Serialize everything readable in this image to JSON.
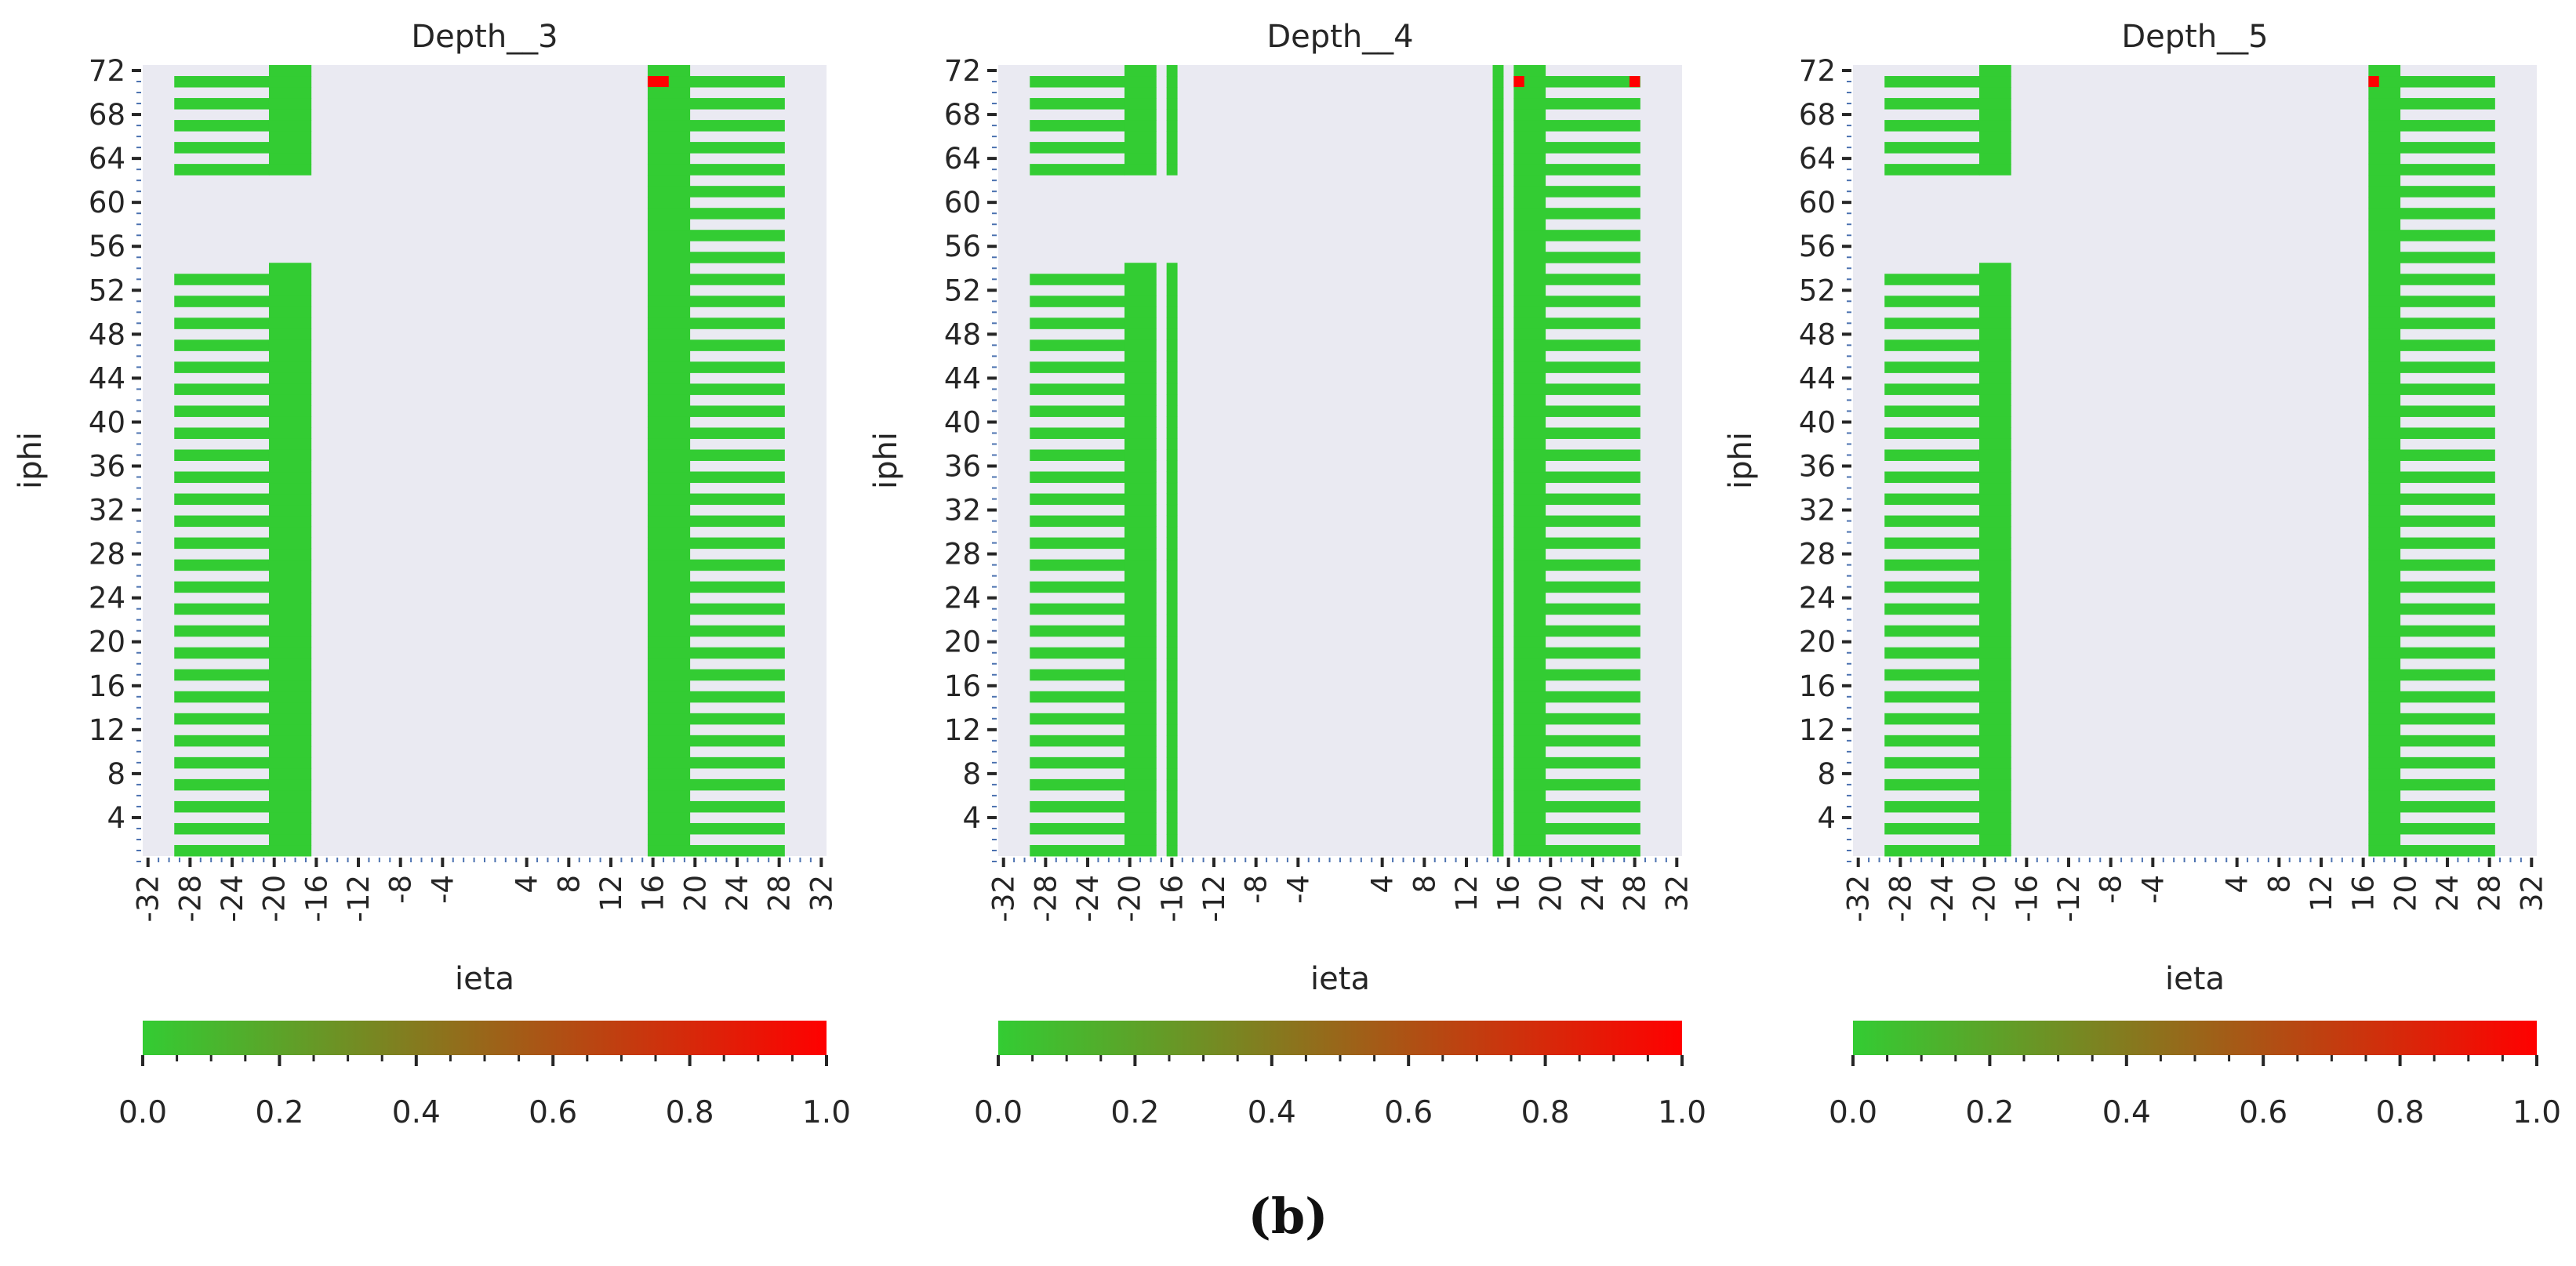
{
  "figure": {
    "panel_label": "(b)"
  },
  "chart_data": [
    {
      "type": "heatmap",
      "title": "Depth__3",
      "xlabel": "ieta",
      "ylabel": "iphi",
      "x_tick_labels": [
        "-32",
        "-28",
        "-24",
        "-20",
        "-16",
        "-12",
        "-8",
        "-4",
        "4",
        "8",
        "12",
        "16",
        "20",
        "24",
        "28",
        "32"
      ],
      "y_tick_labels": [
        "4",
        "8",
        "12",
        "16",
        "20",
        "24",
        "28",
        "32",
        "36",
        "40",
        "44",
        "48",
        "52",
        "56",
        "60",
        "64",
        "68",
        "72"
      ],
      "xlim": [
        -32,
        32
      ],
      "ylim": [
        0,
        72
      ],
      "colorbar": {
        "min": 0.0,
        "max": 1.0,
        "low_color": "#33cc33",
        "high_color": "#ff0000",
        "tick_labels": [
          "0.0",
          "0.2",
          "0.4",
          "0.6",
          "0.8",
          "1.0"
        ]
      },
      "background_color": "#eaeaf2",
      "blocks": [
        {
          "ieta": [
            -29,
            -21
          ],
          "iphi_rows": "odd",
          "iphi_range": [
            1,
            53
          ],
          "value": 0.0
        },
        {
          "ieta": [
            -29,
            -21
          ],
          "iphi_rows": "odd",
          "iphi_range": [
            63,
            71
          ],
          "value": 0.0
        },
        {
          "ieta": [
            -20,
            -17
          ],
          "iphi_rows": "all",
          "iphi_range": [
            1,
            54
          ],
          "value": 0.0
        },
        {
          "ieta": [
            -20,
            -17
          ],
          "iphi_rows": "all",
          "iphi_range": [
            63,
            72
          ],
          "value": 0.0
        },
        {
          "ieta": [
            16,
            19
          ],
          "iphi_rows": "all",
          "iphi_range": [
            1,
            72
          ],
          "value": 0.0
        },
        {
          "ieta": [
            20,
            28
          ],
          "iphi_rows": "odd",
          "iphi_range": [
            1,
            71
          ],
          "value": 0.0
        }
      ],
      "hot_cells": [
        {
          "ieta": [
            16,
            17
          ],
          "iphi": 71,
          "value": 1.0
        }
      ]
    },
    {
      "type": "heatmap",
      "title": "Depth__4",
      "xlabel": "ieta",
      "ylabel": "iphi",
      "x_tick_labels": [
        "-32",
        "-28",
        "-24",
        "-20",
        "-16",
        "-12",
        "-8",
        "-4",
        "4",
        "8",
        "12",
        "16",
        "20",
        "24",
        "28",
        "32"
      ],
      "y_tick_labels": [
        "4",
        "8",
        "12",
        "16",
        "20",
        "24",
        "28",
        "32",
        "36",
        "40",
        "44",
        "48",
        "52",
        "56",
        "60",
        "64",
        "68",
        "72"
      ],
      "xlim": [
        -32,
        32
      ],
      "ylim": [
        0,
        72
      ],
      "colorbar": {
        "min": 0.0,
        "max": 1.0,
        "low_color": "#33cc33",
        "high_color": "#ff0000",
        "tick_labels": [
          "0.0",
          "0.2",
          "0.4",
          "0.6",
          "0.8",
          "1.0"
        ]
      },
      "background_color": "#eaeaf2",
      "blocks": [
        {
          "ieta": [
            -29,
            -21
          ],
          "iphi_rows": "odd",
          "iphi_range": [
            1,
            53
          ],
          "value": 0.0
        },
        {
          "ieta": [
            -29,
            -21
          ],
          "iphi_rows": "odd",
          "iphi_range": [
            63,
            71
          ],
          "value": 0.0
        },
        {
          "ieta": [
            -20,
            -18
          ],
          "iphi_rows": "all",
          "iphi_range": [
            1,
            54
          ],
          "value": 0.0
        },
        {
          "ieta": [
            -20,
            -18
          ],
          "iphi_rows": "all",
          "iphi_range": [
            63,
            72
          ],
          "value": 0.0
        },
        {
          "ieta": [
            -16,
            -16
          ],
          "iphi_rows": "all",
          "iphi_range": [
            1,
            54
          ],
          "value": 0.0
        },
        {
          "ieta": [
            -16,
            -16
          ],
          "iphi_rows": "all",
          "iphi_range": [
            63,
            72
          ],
          "value": 0.0
        },
        {
          "ieta": [
            15,
            15
          ],
          "iphi_rows": "all",
          "iphi_range": [
            1,
            72
          ],
          "value": 0.0
        },
        {
          "ieta": [
            17,
            19
          ],
          "iphi_rows": "all",
          "iphi_range": [
            1,
            72
          ],
          "value": 0.0
        },
        {
          "ieta": [
            20,
            28
          ],
          "iphi_rows": "odd",
          "iphi_range": [
            1,
            71
          ],
          "value": 0.0
        }
      ],
      "hot_cells": [
        {
          "ieta": [
            17,
            17
          ],
          "iphi": 71,
          "value": 1.0
        },
        {
          "ieta": [
            28,
            28
          ],
          "iphi": 71,
          "value": 1.0
        }
      ]
    },
    {
      "type": "heatmap",
      "title": "Depth__5",
      "xlabel": "ieta",
      "ylabel": "iphi",
      "x_tick_labels": [
        "-32",
        "-28",
        "-24",
        "-20",
        "-16",
        "-12",
        "-8",
        "-4",
        "4",
        "8",
        "12",
        "16",
        "20",
        "24",
        "28",
        "32"
      ],
      "y_tick_labels": [
        "4",
        "8",
        "12",
        "16",
        "20",
        "24",
        "28",
        "32",
        "36",
        "40",
        "44",
        "48",
        "52",
        "56",
        "60",
        "64",
        "68",
        "72"
      ],
      "xlim": [
        -32,
        32
      ],
      "ylim": [
        0,
        72
      ],
      "colorbar": {
        "min": 0.0,
        "max": 1.0,
        "low_color": "#33cc33",
        "high_color": "#ff0000",
        "tick_labels": [
          "0.0",
          "0.2",
          "0.4",
          "0.6",
          "0.8",
          "1.0"
        ]
      },
      "background_color": "#eaeaf2",
      "blocks": [
        {
          "ieta": [
            -29,
            -21
          ],
          "iphi_rows": "odd",
          "iphi_range": [
            1,
            53
          ],
          "value": 0.0
        },
        {
          "ieta": [
            -29,
            -21
          ],
          "iphi_rows": "odd",
          "iphi_range": [
            63,
            71
          ],
          "value": 0.0
        },
        {
          "ieta": [
            -20,
            -18
          ],
          "iphi_rows": "all",
          "iphi_range": [
            1,
            54
          ],
          "value": 0.0
        },
        {
          "ieta": [
            -20,
            -18
          ],
          "iphi_rows": "all",
          "iphi_range": [
            63,
            72
          ],
          "value": 0.0
        },
        {
          "ieta": [
            17,
            19
          ],
          "iphi_rows": "all",
          "iphi_range": [
            1,
            72
          ],
          "value": 0.0
        },
        {
          "ieta": [
            20,
            28
          ],
          "iphi_rows": "odd",
          "iphi_range": [
            1,
            71
          ],
          "value": 0.0
        }
      ],
      "hot_cells": [
        {
          "ieta": [
            17,
            17
          ],
          "iphi": 71,
          "value": 1.0
        }
      ]
    }
  ]
}
